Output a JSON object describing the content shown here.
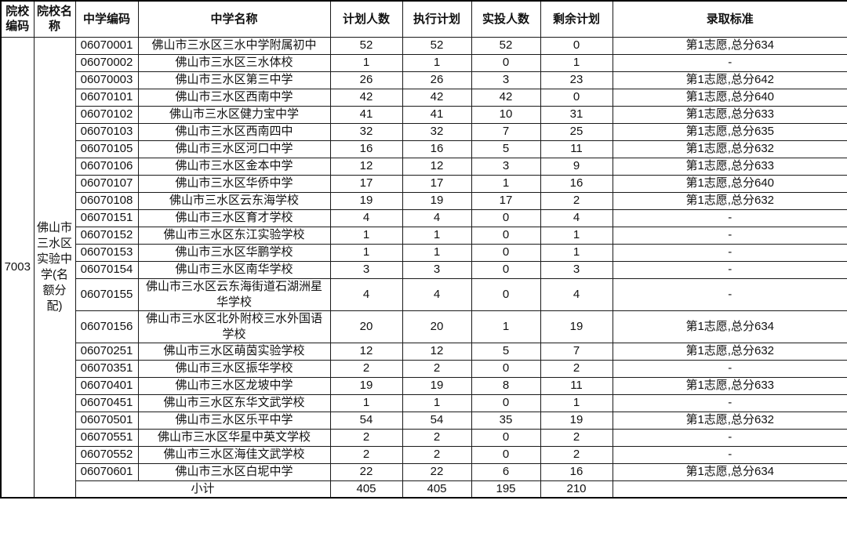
{
  "table": {
    "columns": [
      "院校编码",
      "院校名称",
      "中学编码",
      "中学名称",
      "计划人数",
      "执行计划",
      "实投人数",
      "剩余计划",
      "录取标准"
    ],
    "college": {
      "code": "7003",
      "name": "佛山市三水区实验中学(名额分配)"
    },
    "rows": [
      {
        "code": "06070001",
        "school": "佛山市三水区三水中学附属初中",
        "plan": "52",
        "exec": "52",
        "actual": "52",
        "remain": "0",
        "standard": "第1志愿,总分634"
      },
      {
        "code": "06070002",
        "school": "佛山市三水区三水体校",
        "plan": "1",
        "exec": "1",
        "actual": "0",
        "remain": "1",
        "standard": "-"
      },
      {
        "code": "06070003",
        "school": "佛山市三水区第三中学",
        "plan": "26",
        "exec": "26",
        "actual": "3",
        "remain": "23",
        "standard": "第1志愿,总分642"
      },
      {
        "code": "06070101",
        "school": "佛山市三水区西南中学",
        "plan": "42",
        "exec": "42",
        "actual": "42",
        "remain": "0",
        "standard": "第1志愿,总分640"
      },
      {
        "code": "06070102",
        "school": "佛山市三水区健力宝中学",
        "plan": "41",
        "exec": "41",
        "actual": "10",
        "remain": "31",
        "standard": "第1志愿,总分633"
      },
      {
        "code": "06070103",
        "school": "佛山市三水区西南四中",
        "plan": "32",
        "exec": "32",
        "actual": "7",
        "remain": "25",
        "standard": "第1志愿,总分635"
      },
      {
        "code": "06070105",
        "school": "佛山市三水区河口中学",
        "plan": "16",
        "exec": "16",
        "actual": "5",
        "remain": "11",
        "standard": "第1志愿,总分632"
      },
      {
        "code": "06070106",
        "school": "佛山市三水区金本中学",
        "plan": "12",
        "exec": "12",
        "actual": "3",
        "remain": "9",
        "standard": "第1志愿,总分633"
      },
      {
        "code": "06070107",
        "school": "佛山市三水区华侨中学",
        "plan": "17",
        "exec": "17",
        "actual": "1",
        "remain": "16",
        "standard": "第1志愿,总分640"
      },
      {
        "code": "06070108",
        "school": "佛山市三水区云东海学校",
        "plan": "19",
        "exec": "19",
        "actual": "17",
        "remain": "2",
        "standard": "第1志愿,总分632"
      },
      {
        "code": "06070151",
        "school": "佛山市三水区育才学校",
        "plan": "4",
        "exec": "4",
        "actual": "0",
        "remain": "4",
        "standard": "-"
      },
      {
        "code": "06070152",
        "school": "佛山市三水区东江实验学校",
        "plan": "1",
        "exec": "1",
        "actual": "0",
        "remain": "1",
        "standard": "-"
      },
      {
        "code": "06070153",
        "school": "佛山市三水区华鹏学校",
        "plan": "1",
        "exec": "1",
        "actual": "0",
        "remain": "1",
        "standard": "-"
      },
      {
        "code": "06070154",
        "school": "佛山市三水区南华学校",
        "plan": "3",
        "exec": "3",
        "actual": "0",
        "remain": "3",
        "standard": "-"
      },
      {
        "code": "06070155",
        "school": "佛山市三水区云东海街道石湖洲星华学校",
        "plan": "4",
        "exec": "4",
        "actual": "0",
        "remain": "4",
        "standard": "-"
      },
      {
        "code": "06070156",
        "school": "佛山市三水区北外附校三水外国语学校",
        "plan": "20",
        "exec": "20",
        "actual": "1",
        "remain": "19",
        "standard": "第1志愿,总分634"
      },
      {
        "code": "06070251",
        "school": "佛山市三水区萌茵实验学校",
        "plan": "12",
        "exec": "12",
        "actual": "5",
        "remain": "7",
        "standard": "第1志愿,总分632"
      },
      {
        "code": "06070351",
        "school": "佛山市三水区振华学校",
        "plan": "2",
        "exec": "2",
        "actual": "0",
        "remain": "2",
        "standard": "-"
      },
      {
        "code": "06070401",
        "school": "佛山市三水区龙坡中学",
        "plan": "19",
        "exec": "19",
        "actual": "8",
        "remain": "11",
        "standard": "第1志愿,总分633"
      },
      {
        "code": "06070451",
        "school": "佛山市三水区东华文武学校",
        "plan": "1",
        "exec": "1",
        "actual": "0",
        "remain": "1",
        "standard": "-"
      },
      {
        "code": "06070501",
        "school": "佛山市三水区乐平中学",
        "plan": "54",
        "exec": "54",
        "actual": "35",
        "remain": "19",
        "standard": "第1志愿,总分632"
      },
      {
        "code": "06070551",
        "school": "佛山市三水区华星中英文学校",
        "plan": "2",
        "exec": "2",
        "actual": "0",
        "remain": "2",
        "standard": "-"
      },
      {
        "code": "06070552",
        "school": "佛山市三水区海佳文武学校",
        "plan": "2",
        "exec": "2",
        "actual": "0",
        "remain": "2",
        "standard": "-"
      },
      {
        "code": "06070601",
        "school": "佛山市三水区白坭中学",
        "plan": "22",
        "exec": "22",
        "actual": "6",
        "remain": "16",
        "standard": "第1志愿,总分634"
      }
    ],
    "subtotal": {
      "label": "小计",
      "plan": "405",
      "exec": "405",
      "actual": "195",
      "remain": "210",
      "standard": ""
    }
  },
  "colors": {
    "background": "#ffffff",
    "text": "#111111",
    "border": "#1a1a1a",
    "outer_border": "#000000"
  }
}
